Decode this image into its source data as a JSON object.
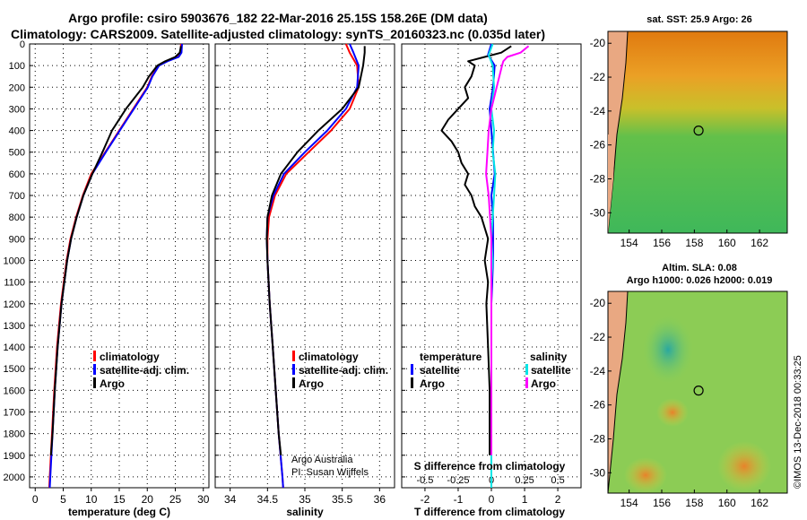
{
  "title_line1": "Argo profile: csiro 5903676_182 22-Mar-2016 25.15S 158.26E (DM data)",
  "title_line2": "Climatology: CARS2009. Satellite-adjusted climatology: synTS_20160323.nc (0.035d later)",
  "credit": "©IMOS 13-Dec-2018 00:33:25",
  "colors": {
    "climatology": "#ff0000",
    "satellite": "#0000ff",
    "argo": "#000000",
    "sat_salinity": "#00e5e5",
    "argo_salinity": "#ff00ff"
  },
  "legend_common": [
    "climatology",
    "satellite-adj. clim.",
    "Argo"
  ],
  "attribution": [
    "Argo Australia",
    "PI: Susan Wijffels"
  ],
  "diff_legend": {
    "temperature_head": "temperature",
    "salinity_head": "salinity",
    "satellite": "satellite",
    "argo": "Argo"
  },
  "maps": {
    "sst_title": "sat. SST: 25.9 Argo: 26",
    "sla_title_line1": "Altim. SLA: 0.08",
    "sla_title_line2": "Argo h1000: 0.026 h2000: 0.019",
    "lon_ticks": [
      154,
      156,
      158,
      160,
      162
    ],
    "lat_ticks": [
      -20,
      -22,
      -24,
      -26,
      -28,
      -30
    ],
    "float_lon": 158.26,
    "float_lat": -25.15
  },
  "chart_data": [
    {
      "type": "line",
      "xlabel": "temperature (deg C)",
      "xlim": [
        -1,
        31
      ],
      "xticks": [
        0,
        5,
        10,
        15,
        20,
        25,
        30
      ],
      "ylim": [
        2050,
        0
      ],
      "yticks": [
        0,
        100,
        200,
        300,
        400,
        500,
        600,
        700,
        800,
        900,
        1000,
        1100,
        1200,
        1300,
        1400,
        1500,
        1600,
        1700,
        1800,
        1900,
        2000
      ],
      "series": [
        {
          "name": "climatology",
          "depth": [
            0,
            40,
            60,
            80,
            100,
            150,
            200,
            300,
            400,
            500,
            600,
            700,
            800,
            900,
            1000,
            1200,
            1400,
            1600,
            1800,
            2000,
            2050
          ],
          "values": [
            26,
            26,
            25.5,
            23.5,
            22,
            20.8,
            20,
            17.5,
            15,
            12.5,
            10,
            8.5,
            7.3,
            6.3,
            5.6,
            4.6,
            3.9,
            3.4,
            3.0,
            2.6,
            2.5
          ]
        },
        {
          "name": "satellite-adj. clim.",
          "depth": [
            0,
            40,
            60,
            80,
            100,
            150,
            200,
            300,
            400,
            500,
            600,
            700,
            800,
            900,
            1000,
            1200,
            1400,
            1600,
            1800,
            2000,
            2050
          ],
          "values": [
            26.2,
            26.1,
            25.6,
            23.6,
            22.1,
            20.9,
            20.1,
            17.6,
            15.1,
            12.6,
            10.2,
            8.6,
            7.4,
            6.4,
            5.7,
            4.7,
            4.0,
            3.5,
            3.1,
            2.7,
            2.6
          ]
        },
        {
          "name": "Argo",
          "depth": [
            10,
            40,
            60,
            80,
            100,
            150,
            200,
            300,
            400,
            500,
            600,
            700,
            800,
            900,
            1000,
            1200,
            1400,
            1600,
            1800,
            1900
          ],
          "values": [
            26,
            25.8,
            25,
            23.2,
            21.8,
            20.3,
            19.2,
            16.2,
            13.7,
            12,
            10.2,
            8.6,
            7.4,
            6.4,
            5.7,
            4.7,
            4.0,
            3.5,
            3.1,
            2.8
          ]
        }
      ]
    },
    {
      "type": "line",
      "xlabel": "salinity",
      "xlim": [
        33.8,
        36.2
      ],
      "xticks": [
        34,
        34.5,
        35,
        35.5,
        36
      ],
      "ylim": [
        2050,
        0
      ],
      "series": [
        {
          "name": "climatology",
          "depth": [
            0,
            40,
            100,
            200,
            300,
            400,
            500,
            600,
            700,
            800,
            900,
            1000,
            1200,
            1400,
            1600,
            1800,
            2000,
            2050
          ],
          "values": [
            35.55,
            35.6,
            35.7,
            35.72,
            35.6,
            35.35,
            35.05,
            34.75,
            34.6,
            34.52,
            34.5,
            34.5,
            34.53,
            34.57,
            34.61,
            34.65,
            34.7,
            34.71
          ]
        },
        {
          "name": "satellite-adj. clim.",
          "depth": [
            0,
            40,
            100,
            200,
            300,
            400,
            500,
            600,
            700,
            800,
            900,
            1000,
            1200,
            1400,
            1600,
            1800,
            2000,
            2050
          ],
          "values": [
            35.6,
            35.65,
            35.72,
            35.7,
            35.55,
            35.3,
            35.0,
            34.72,
            34.58,
            34.5,
            34.49,
            34.5,
            34.53,
            34.57,
            34.61,
            34.65,
            34.7,
            34.71
          ]
        },
        {
          "name": "Argo",
          "depth": [
            10,
            40,
            100,
            200,
            300,
            400,
            500,
            600,
            700,
            800,
            900,
            1000,
            1200,
            1400,
            1600,
            1800,
            1900
          ],
          "values": [
            35.8,
            35.8,
            35.78,
            35.72,
            35.5,
            35.18,
            34.9,
            34.68,
            34.56,
            34.5,
            34.49,
            34.5,
            34.53,
            34.57,
            34.61,
            34.65,
            34.68
          ]
        }
      ]
    },
    {
      "type": "line",
      "xlabel": "T difference from climatology",
      "xlabel_top": "S difference from climatology",
      "xlim": [
        -2.7,
        2.7
      ],
      "xticks": [
        -2,
        -1,
        0,
        1,
        2
      ],
      "xticks_top": [
        -0.5,
        -0.25,
        0,
        0.25,
        0.5
      ],
      "xtick_labels_top": [
        "-0.5",
        "-0.25",
        "0",
        "0.25",
        "0.5"
      ],
      "ylim": [
        2050,
        0
      ],
      "series": [
        {
          "name": "temperature Argo",
          "depth": [
            10,
            40,
            60,
            80,
            100,
            150,
            200,
            250,
            300,
            350,
            400,
            450,
            500,
            550,
            600,
            650,
            700,
            750,
            800,
            900,
            1000,
            1100,
            1200,
            1400,
            1600,
            1800,
            1900
          ],
          "values": [
            0.6,
            0.3,
            -0.2,
            -0.7,
            -0.5,
            -0.6,
            -0.8,
            -0.7,
            -1.0,
            -1.3,
            -1.5,
            -1.2,
            -1.0,
            -0.9,
            -0.7,
            -0.8,
            -0.6,
            -0.5,
            -0.3,
            -0.1,
            -0.2,
            -0.1,
            -0.15,
            -0.1,
            -0.05,
            -0.05,
            -0.05
          ]
        },
        {
          "name": "temperature satellite",
          "depth": [
            0,
            50,
            100,
            200,
            300,
            400,
            500,
            600,
            700,
            800,
            1000,
            1200,
            1400,
            1600,
            1800,
            2000,
            2050
          ],
          "values": [
            0.0,
            -0.1,
            0.1,
            0.05,
            -0.05,
            0.0,
            0.05,
            0.1,
            0.0,
            0.05,
            0.05,
            0.0,
            0.0,
            0.0,
            0.0,
            0.0,
            0.0
          ]
        },
        {
          "name": "salinity satellite",
          "depth": [
            0,
            50,
            100,
            200,
            300,
            400,
            500,
            600,
            700,
            800,
            900,
            1000,
            1100,
            1200,
            1400,
            1600,
            1800,
            2000,
            2050
          ],
          "values": [
            0.01,
            -0.02,
            0.01,
            0.02,
            0.0,
            0.02,
            0.01,
            0.03,
            0.02,
            0.01,
            0.0,
            0.01,
            0.0,
            0.0,
            0.0,
            0.0,
            0.0,
            0.0,
            0.0
          ]
        },
        {
          "name": "salinity Argo",
          "depth": [
            10,
            40,
            60,
            80,
            100,
            150,
            200,
            300,
            400,
            500,
            600,
            700,
            800,
            900,
            1000,
            1200,
            1400,
            1600,
            1800,
            1900
          ],
          "values": [
            0.28,
            0.22,
            0.12,
            0.09,
            0.08,
            0.06,
            0.04,
            0.0,
            -0.02,
            -0.03,
            -0.04,
            -0.02,
            -0.01,
            0.0,
            0.0,
            0.0,
            0.0,
            0.0,
            0.0,
            0.0
          ]
        }
      ]
    }
  ]
}
